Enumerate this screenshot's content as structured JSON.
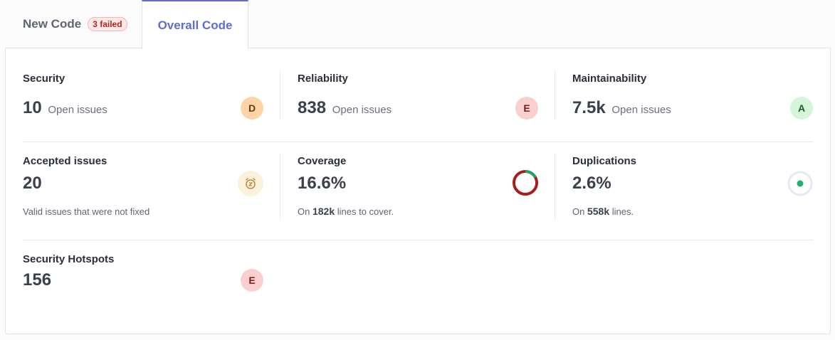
{
  "tabs": {
    "new_code": {
      "label": "New Code",
      "badge": "3 failed"
    },
    "overall_code": {
      "label": "Overall Code"
    }
  },
  "security": {
    "title": "Security",
    "value": "10",
    "sub": "Open issues",
    "rating": "D"
  },
  "reliability": {
    "title": "Reliability",
    "value": "838",
    "sub": "Open issues",
    "rating": "E"
  },
  "maintainability": {
    "title": "Maintainability",
    "value": "7.5k",
    "sub": "Open issues",
    "rating": "A"
  },
  "accepted_issues": {
    "title": "Accepted issues",
    "value": "20",
    "description": "Valid issues that were not fixed",
    "icon": "snooze-clock-icon"
  },
  "coverage": {
    "title": "Coverage",
    "value": "16.6%",
    "desc_prefix": "On",
    "desc_value": "182k",
    "desc_suffix": "lines to cover.",
    "percent": 16.6
  },
  "duplications": {
    "title": "Duplications",
    "value": "2.6%",
    "desc_prefix": "On",
    "desc_value": "558k",
    "desc_suffix": "lines.",
    "percent": 2.6
  },
  "security_hotspots": {
    "title": "Security Hotspots",
    "value": "156",
    "rating": "E"
  },
  "colors": {
    "accent": "#5d6cd0",
    "coverage_good": "#1aa86b",
    "coverage_bad": "#a81c1c",
    "dup_dot": "#1fb36d"
  }
}
